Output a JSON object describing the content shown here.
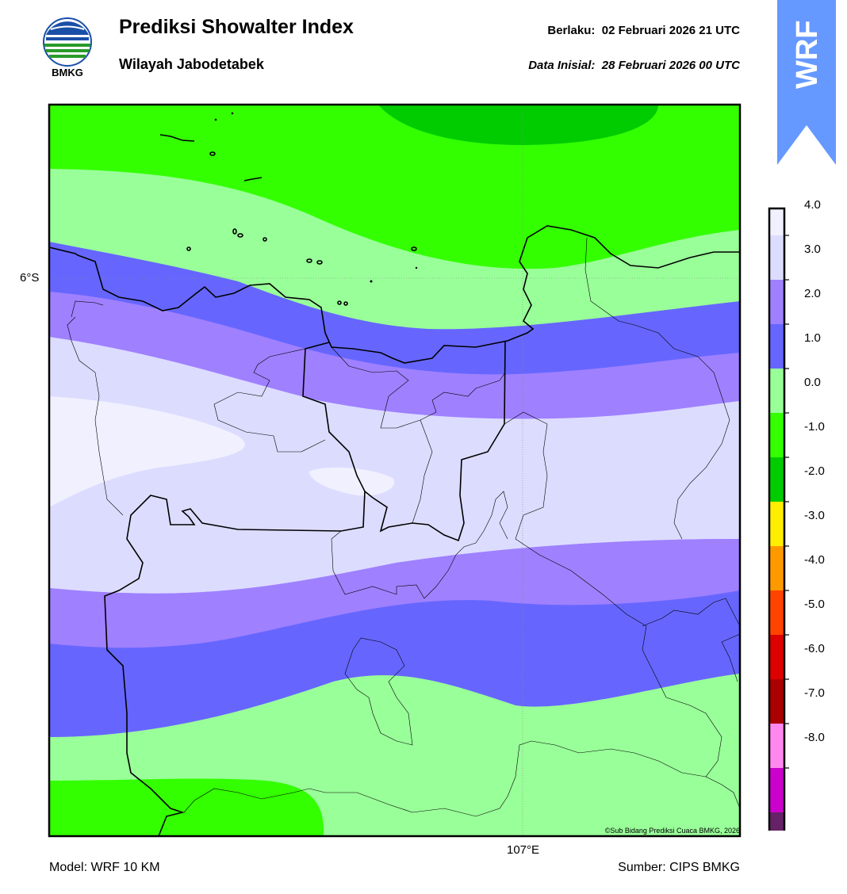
{
  "header": {
    "logo_text": "BMKG",
    "title": "Prediksi Showalter Index",
    "subtitle": "Wilayah Jabodetabek",
    "valid_label": "Berlaku:",
    "valid_time": "02 Februari 2026 21 UTC",
    "init_label": "Data Inisial:",
    "init_time": "28 Februari 2026 00 UTC"
  },
  "badge": {
    "text": "WRF",
    "color": "#6699ff"
  },
  "map": {
    "lat_label": "6°S",
    "lon_label": "107°E",
    "copyright": "©Sub Bidang Prediksi Cuaca BMKG, 2026"
  },
  "colorbar": {
    "labels": [
      "4.0",
      "3.0",
      "2.0",
      "1.0",
      "0.0",
      "-1.0",
      "-2.0",
      "-3.0",
      "-4.0",
      "-5.0",
      "-6.0",
      "-7.0",
      "-8.0"
    ],
    "colors": [
      "#f0f0ff",
      "#dcdcff",
      "#9f80ff",
      "#6666ff",
      "#99ff99",
      "#33ff00",
      "#00cc00",
      "#ffee00",
      "#ff9900",
      "#ff4400",
      "#dd0000",
      "#aa0000",
      "#ff88ee",
      "#cc00cc",
      "#662266"
    ]
  },
  "footer": {
    "model": "Model: WRF 10 KM",
    "source": "Sumber: CIPS BMKG"
  }
}
